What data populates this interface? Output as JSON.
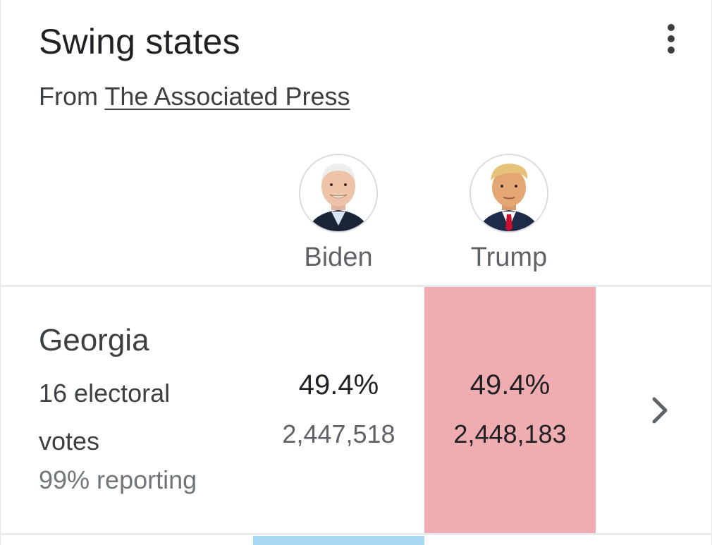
{
  "header": {
    "title": "Swing states",
    "source_prefix": "From",
    "source_link": "The Associated Press",
    "menu_icon": "more-vert-icon"
  },
  "candidates": [
    {
      "name": "Biden",
      "photo": "biden-photo"
    },
    {
      "name": "Trump",
      "photo": "trump-photo"
    }
  ],
  "states": [
    {
      "name": "Georgia",
      "electoral_votes": "16 electoral votes",
      "reporting": "99% reporting",
      "results": [
        {
          "candidate": "Biden",
          "percent": "49.4%",
          "votes": "2,447,518"
        },
        {
          "candidate": "Trump",
          "percent": "49.4%",
          "votes": "2,448,183"
        }
      ],
      "leader": "Trump",
      "chevron_icon": "chevron-right-icon"
    }
  ],
  "colors": {
    "leader_red": "#f0adb1",
    "next_row_blue": "#a8d8f1",
    "divider": "#e8eaed"
  }
}
